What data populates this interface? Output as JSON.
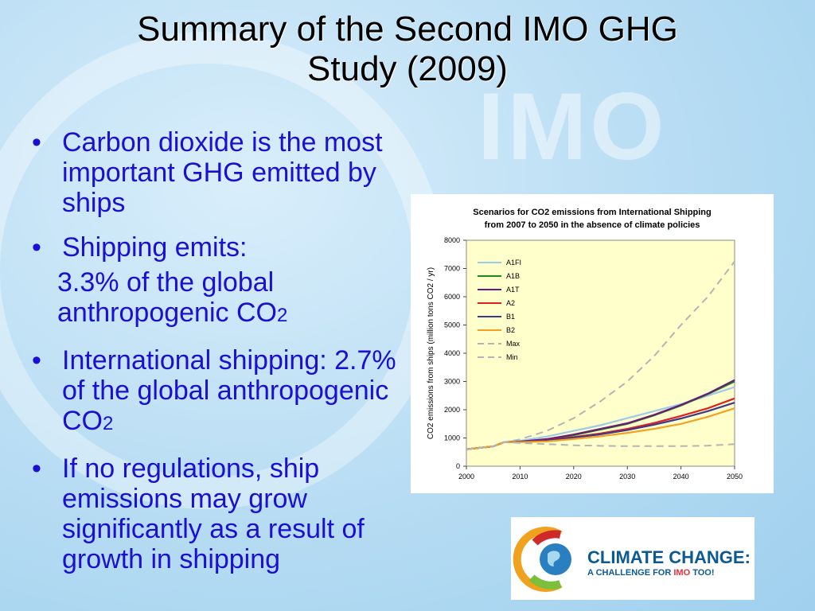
{
  "slide": {
    "title_line1": "Summary of the Second IMO GHG",
    "title_line2": "Study (2009)",
    "background_watermark": "IMO"
  },
  "bullets": [
    {
      "text": "Carbon dioxide is the most important GHG emitted by ships"
    },
    {
      "text": "Shipping emits:"
    },
    {
      "text_main": "3.3% of the global anthropogenic CO",
      "subscript": "2"
    },
    {
      "text_main": "International shipping: 2.7% of the global anthropogenic CO",
      "subscript": "2"
    },
    {
      "text": "If no regulations, ship emissions may grow significantly as a result of growth in shipping"
    }
  ],
  "logo": {
    "line1": "CLIMATE CHANGE:",
    "line2_prefix": "A CHALLENGE FOR ",
    "line2_brand": "IMO",
    "line2_suffix": " TOO!"
  },
  "chart_data": {
    "type": "line",
    "title_line1": "Scenarios for CO2 emissions from International Shipping",
    "title_line2": "from 2007 to 2050  in the absence of climate policies",
    "ylabel": "CO2 emissions from ships (million tons CO2 / yr)",
    "xlabel": "",
    "xlim": [
      2000,
      2050
    ],
    "ylim": [
      0,
      8000
    ],
    "xticks": [
      2000,
      2010,
      2020,
      2030,
      2040,
      2050
    ],
    "yticks": [
      0,
      1000,
      2000,
      3000,
      4000,
      5000,
      6000,
      7000,
      8000
    ],
    "legend_position": "upper-left",
    "plot_background": "#ffffcc",
    "x": [
      2000,
      2005,
      2007,
      2010,
      2015,
      2020,
      2025,
      2030,
      2035,
      2040,
      2045,
      2050
    ],
    "series": [
      {
        "name": "A1FI",
        "color": "#9fc9ea",
        "dashed": false,
        "values": [
          600,
          700,
          850,
          900,
          1050,
          1250,
          1450,
          1700,
          1950,
          2200,
          2500,
          2800
        ]
      },
      {
        "name": "A1B",
        "color": "#1e8a1e",
        "dashed": false,
        "values": [
          600,
          700,
          850,
          870,
          950,
          1100,
          1300,
          1500,
          1800,
          2150,
          2550,
          3000
        ]
      },
      {
        "name": "A1T",
        "color": "#6a1a7a",
        "dashed": false,
        "values": [
          600,
          700,
          850,
          870,
          960,
          1120,
          1320,
          1520,
          1820,
          2170,
          2570,
          3050
        ]
      },
      {
        "name": "A2",
        "color": "#e01f1f",
        "dashed": false,
        "values": [
          600,
          700,
          850,
          860,
          920,
          1030,
          1160,
          1320,
          1530,
          1780,
          2050,
          2400
        ]
      },
      {
        "name": "B1",
        "color": "#3a3a8c",
        "dashed": false,
        "values": [
          600,
          700,
          850,
          860,
          910,
          1010,
          1130,
          1280,
          1470,
          1690,
          1950,
          2250
        ]
      },
      {
        "name": "B2",
        "color": "#f4a020",
        "dashed": false,
        "values": [
          600,
          700,
          850,
          850,
          880,
          960,
          1060,
          1180,
          1320,
          1500,
          1750,
          2050
        ]
      },
      {
        "name": "Max",
        "color": "#b4b4b4",
        "dashed": true,
        "values": [
          600,
          700,
          850,
          950,
          1250,
          1700,
          2300,
          3000,
          3900,
          5000,
          6000,
          7250
        ]
      },
      {
        "name": "Min",
        "color": "#b4b4b4",
        "dashed": true,
        "values": [
          600,
          700,
          850,
          820,
          780,
          740,
          720,
          710,
          710,
          710,
          730,
          780
        ]
      }
    ]
  }
}
